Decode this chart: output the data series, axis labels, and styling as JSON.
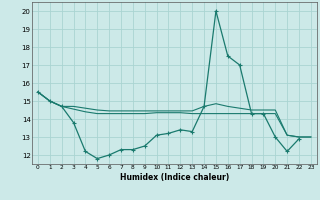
{
  "xlabel": "Humidex (Indice chaleur)",
  "xlim": [
    -0.5,
    23.5
  ],
  "ylim": [
    11.5,
    20.5
  ],
  "yticks": [
    12,
    13,
    14,
    15,
    16,
    17,
    18,
    19,
    20
  ],
  "xticks": [
    0,
    1,
    2,
    3,
    4,
    5,
    6,
    7,
    8,
    9,
    10,
    11,
    12,
    13,
    14,
    15,
    16,
    17,
    18,
    19,
    20,
    21,
    22,
    23
  ],
  "bg_color": "#cce9e8",
  "grid_color": "#aad4d2",
  "line_color": "#1a7a6e",
  "series1": [
    15.5,
    15.0,
    14.7,
    13.8,
    12.2,
    11.8,
    12.0,
    12.3,
    12.3,
    12.5,
    13.1,
    13.2,
    13.4,
    13.3,
    14.7,
    20.0,
    17.5,
    17.0,
    14.3,
    14.3,
    13.0,
    12.2,
    12.9,
    null
  ],
  "series2": [
    15.5,
    15.0,
    14.7,
    14.7,
    14.6,
    14.5,
    14.45,
    14.45,
    14.45,
    14.45,
    14.45,
    14.45,
    14.45,
    14.45,
    14.7,
    14.85,
    14.7,
    14.6,
    14.5,
    14.5,
    14.5,
    13.1,
    13.0,
    13.0
  ],
  "series3": [
    15.5,
    15.0,
    14.7,
    14.55,
    14.4,
    14.3,
    14.3,
    14.3,
    14.3,
    14.3,
    14.35,
    14.35,
    14.35,
    14.3,
    14.3,
    14.3,
    14.3,
    14.3,
    14.3,
    14.3,
    14.3,
    13.1,
    13.0,
    13.0
  ]
}
